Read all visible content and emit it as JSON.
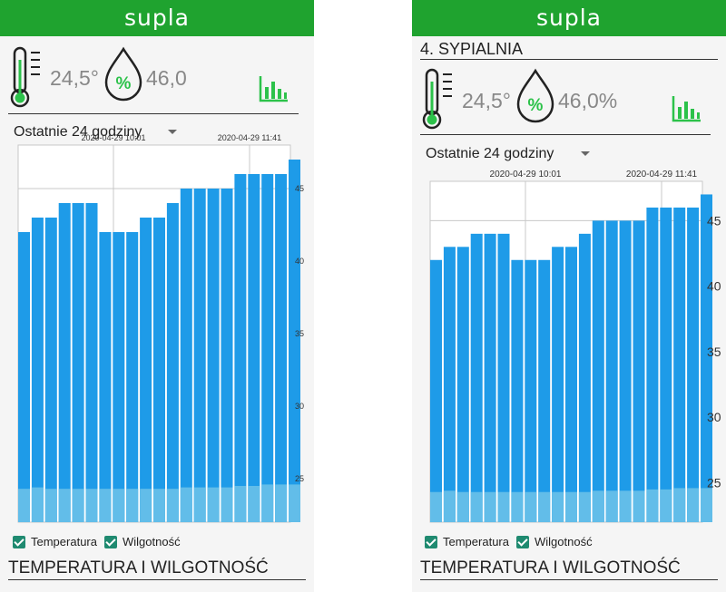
{
  "app": {
    "brand": "supla"
  },
  "left": {
    "temperature": "24,5°",
    "humidity": "46,0",
    "range": "Ostatnie 24 godziny",
    "time_labels": [
      "2020-04-29 10:01",
      "2020-04-29 11:41"
    ],
    "legend": {
      "temperature": "Temperatura",
      "humidity": "Wilgotność"
    },
    "section_title": "TEMPERATURA I WILGOTNOŚĆ"
  },
  "right": {
    "room_title": "4. SYPIALNIA",
    "temperature": "24,5°",
    "humidity": "46,0%",
    "range": "Ostatnie 24 godziny",
    "time_labels": [
      "2020-04-29 10:01",
      "2020-04-29 11:41"
    ],
    "legend": {
      "temperature": "Temperatura",
      "humidity": "Wilgotność"
    },
    "section_title": "TEMPERATURA I WILGOTNOŚĆ"
  },
  "colors": {
    "brand_green": "#1fa32f",
    "humidity_bar": "#1e9be8",
    "temperature_bar": "#62bde9",
    "icon_green": "#2cc24a"
  },
  "chart_data": [
    {
      "type": "bar",
      "ylim": [
        22,
        48
      ],
      "yticks": [
        25,
        30,
        35,
        40,
        45
      ],
      "series": [
        {
          "name": "Wilgotność",
          "values": [
            42,
            43,
            43,
            44,
            44,
            44,
            42,
            42,
            42,
            43,
            43,
            44,
            45,
            45,
            45,
            45,
            46,
            46,
            46,
            46,
            47
          ]
        },
        {
          "name": "Temperatura",
          "values": [
            24.3,
            24.4,
            24.3,
            24.3,
            24.3,
            24.3,
            24.3,
            24.3,
            24.3,
            24.3,
            24.3,
            24.3,
            24.4,
            24.4,
            24.4,
            24.4,
            24.5,
            24.5,
            24.6,
            24.6,
            24.6
          ]
        }
      ]
    },
    {
      "type": "bar",
      "ylim": [
        22,
        48
      ],
      "yticks": [
        25,
        30,
        35,
        40,
        45
      ],
      "series": [
        {
          "name": "Wilgotność",
          "values": [
            42,
            43,
            43,
            44,
            44,
            44,
            42,
            42,
            42,
            43,
            43,
            44,
            45,
            45,
            45,
            45,
            46,
            46,
            46,
            46,
            47
          ]
        },
        {
          "name": "Temperatura",
          "values": [
            24.3,
            24.4,
            24.3,
            24.3,
            24.3,
            24.3,
            24.3,
            24.3,
            24.3,
            24.3,
            24.3,
            24.3,
            24.4,
            24.4,
            24.4,
            24.4,
            24.5,
            24.5,
            24.6,
            24.6,
            24.6
          ]
        }
      ]
    }
  ]
}
